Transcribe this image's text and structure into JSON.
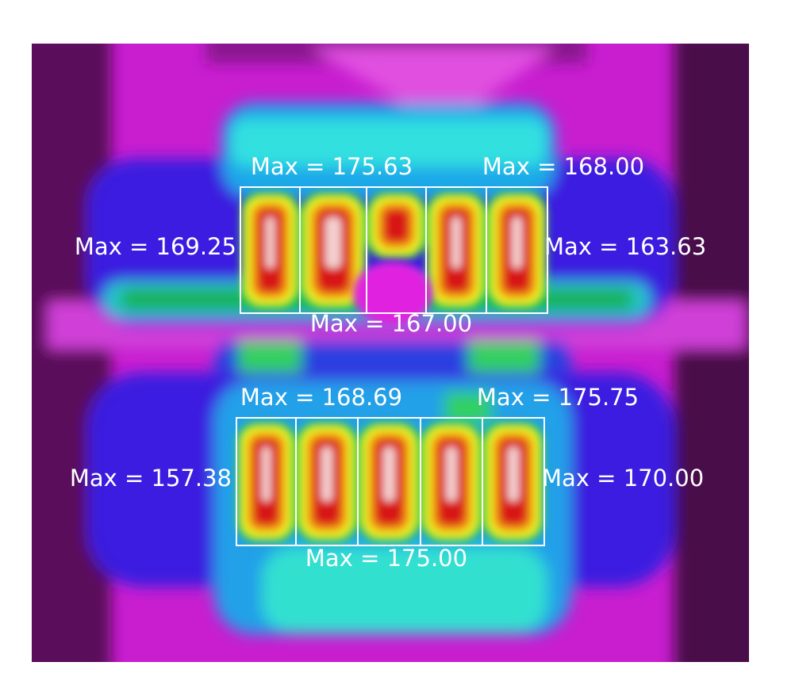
{
  "labels": [
    "Max = 175.63",
    "Max = 168.00",
    "Max = 169.25",
    "Max = 163.63",
    "Max = 167.00",
    "Max = 168.69",
    "Max = 175.75",
    "Max = 157.38",
    "Max = 170.00",
    "Max = 175.00"
  ]
}
